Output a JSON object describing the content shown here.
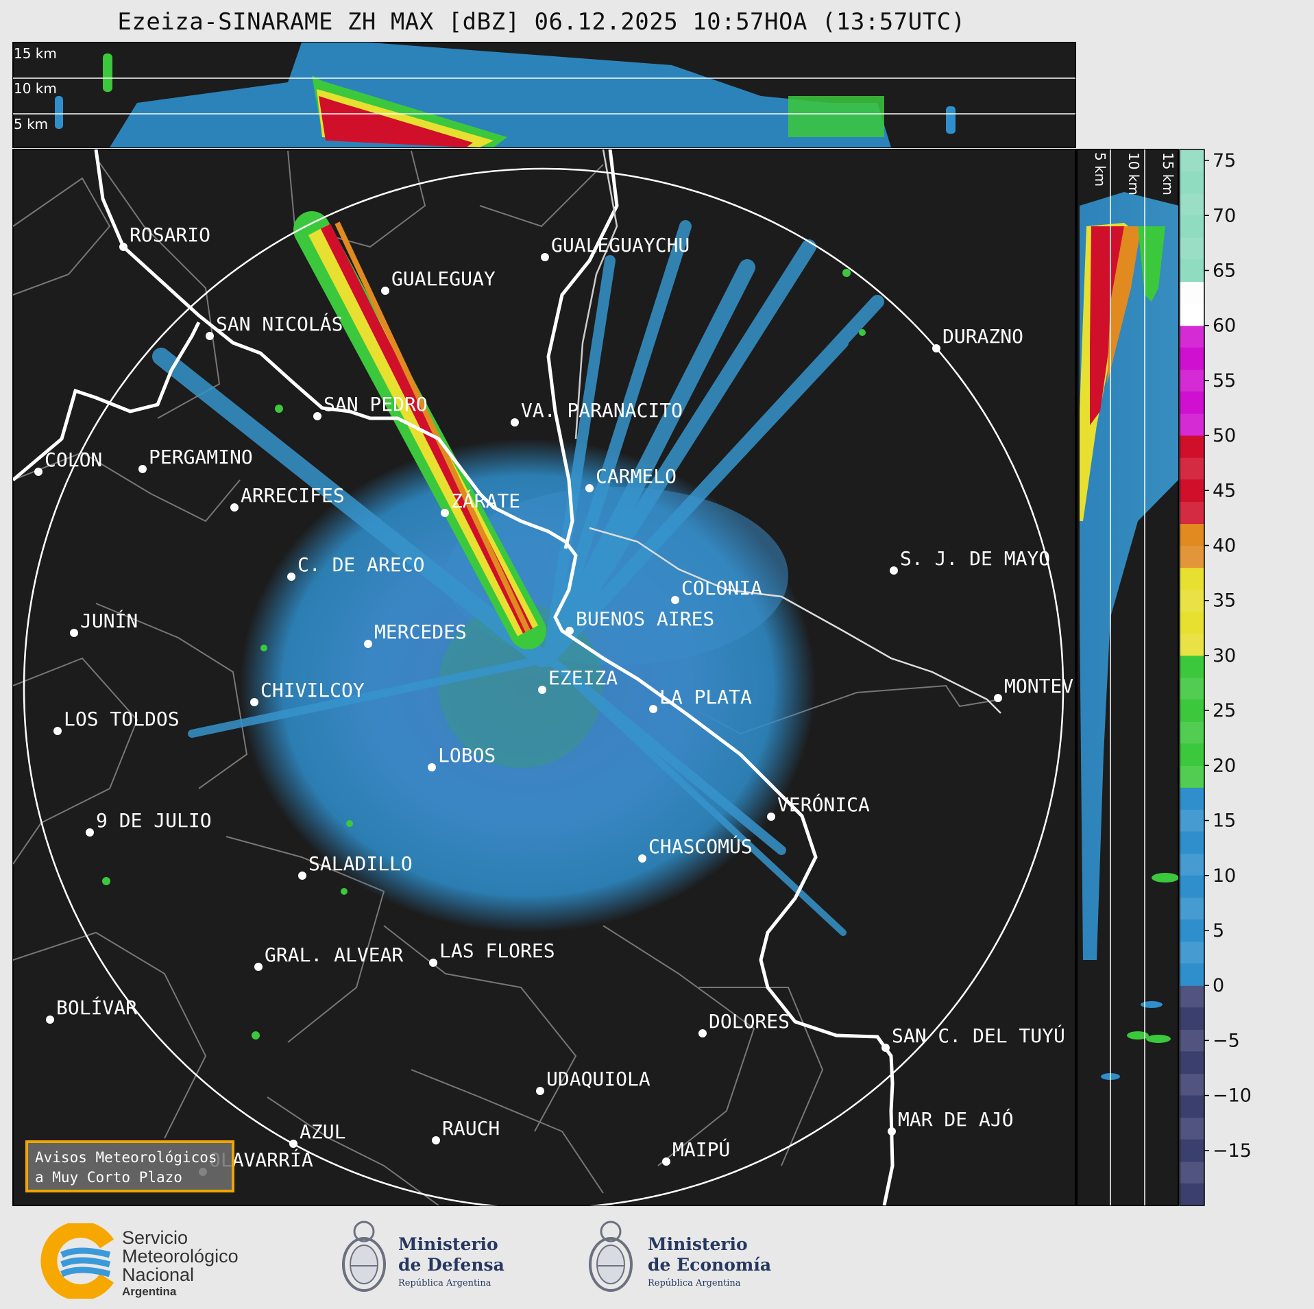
{
  "title": "Ezeiza-SINARAME ZH MAX [dBZ] 06.12.2025 10:57HOA (13:57UTC)",
  "vertical_profile": {
    "km_labels": [
      "15 km",
      "10 km",
      "5 km"
    ]
  },
  "side_profile": {
    "km_labels": [
      "5 km",
      "10 km",
      "15 km"
    ]
  },
  "cities": [
    {
      "name": "ROSARIO"
    },
    {
      "name": "GUALEGUAYCHU"
    },
    {
      "name": "GUALEGUAY"
    },
    {
      "name": "SAN NICOLÁS"
    },
    {
      "name": "DURAZNO"
    },
    {
      "name": "SAN PEDRO"
    },
    {
      "name": "VA. PARANACITO"
    },
    {
      "name": "COLON"
    },
    {
      "name": "PERGAMINO"
    },
    {
      "name": "CARMELO"
    },
    {
      "name": "ARRECIFES"
    },
    {
      "name": "ZÁRATE"
    },
    {
      "name": "S. J. DE MAYO"
    },
    {
      "name": "C. DE ARECO"
    },
    {
      "name": "COLONIA"
    },
    {
      "name": "JUNÍN"
    },
    {
      "name": "BUENOS AIRES"
    },
    {
      "name": "MERCEDES"
    },
    {
      "name": "EZEIZA"
    },
    {
      "name": "MONTEV"
    },
    {
      "name": "CHIVILCOY"
    },
    {
      "name": "LA PLATA"
    },
    {
      "name": "LOS TOLDOS"
    },
    {
      "name": "LOBOS"
    },
    {
      "name": "VERÓNICA"
    },
    {
      "name": "9 DE JULIO"
    },
    {
      "name": "CHASCOMÚS"
    },
    {
      "name": "SALADILLO"
    },
    {
      "name": "GRAL. ALVEAR"
    },
    {
      "name": "LAS FLORES"
    },
    {
      "name": "BOLÍVAR"
    },
    {
      "name": "DOLORES"
    },
    {
      "name": "SAN C. DEL TUYÚ"
    },
    {
      "name": "UDAQUIOLA"
    },
    {
      "name": "MAR DE AJÓ"
    },
    {
      "name": "AZUL"
    },
    {
      "name": "RAUCH"
    },
    {
      "name": "MAIPÚ"
    },
    {
      "name": "OLAVARRÍA"
    }
  ],
  "colorbar": {
    "unit": "dBZ",
    "ticks": [
      "75",
      "70",
      "65",
      "60",
      "55",
      "50",
      "45",
      "40",
      "35",
      "30",
      "25",
      "20",
      "15",
      "10",
      "5",
      "0",
      "−5",
      "−10",
      "−15"
    ],
    "tick_values": [
      75,
      70,
      65,
      60,
      55,
      50,
      45,
      40,
      35,
      30,
      25,
      20,
      15,
      10,
      5,
      0,
      -5,
      -10,
      -15
    ],
    "range": [
      -20,
      76
    ],
    "colors": {
      "low": "#3a3f6e",
      "blue": "#2f8fcc",
      "green": "#3cc83c",
      "yellow": "#e8e030",
      "orange": "#e08a20",
      "red": "#d0102a",
      "magenta": "#d010d0",
      "white": "#ffffff",
      "teal": "#8fdcc0"
    }
  },
  "notice": {
    "line1": "Avisos Meteorológicos",
    "line2": "a Muy Corto Plazo"
  },
  "logos": {
    "smn": {
      "line1": "Servicio",
      "line2": "Meteorológico",
      "line3": "Nacional",
      "line4": "Argentina"
    },
    "defensa": {
      "line1": "Ministerio",
      "line2": "de Defensa",
      "line3": "República Argentina"
    },
    "economia": {
      "line1": "Ministerio",
      "line2": "de Economía",
      "line3": "República Argentina"
    }
  }
}
